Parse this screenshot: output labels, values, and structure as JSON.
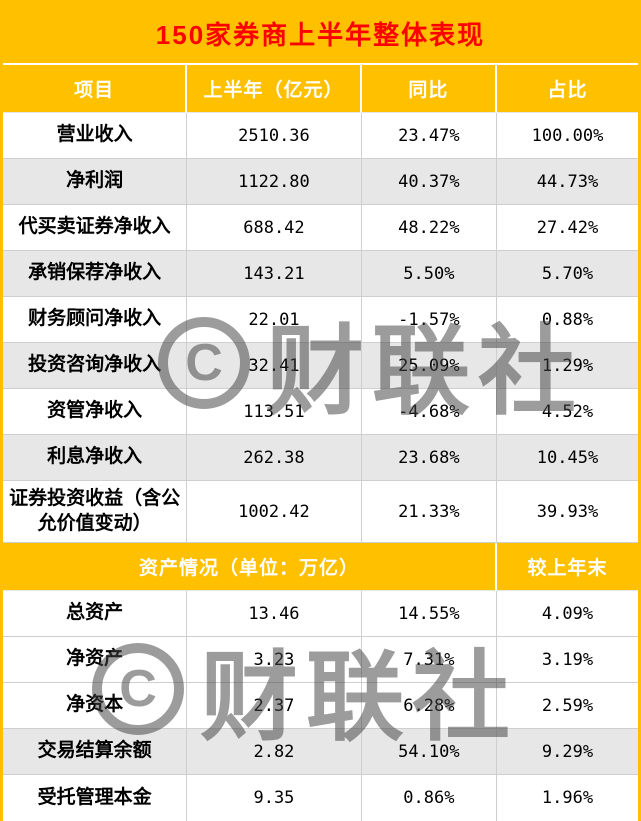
{
  "title": "150家券商上半年整体表现",
  "watermark": {
    "logo_letter": "C",
    "text": "财联社"
  },
  "colors": {
    "header_gold": "#FFC000",
    "title_red": "#FF0000",
    "shaded_row": "#E7E7E7",
    "grid_line": "#CFCFCF"
  },
  "chart_data": {
    "type": "table",
    "title": "150家券商上半年整体表现",
    "sections": [
      {
        "headers": [
          "项目",
          "上半年（亿元）",
          "同比",
          "占比"
        ],
        "rows": [
          [
            "营业收入",
            "2510.36",
            "23.47%",
            "100.00%"
          ],
          [
            "净利润",
            "1122.80",
            "40.37%",
            "44.73%"
          ],
          [
            "代买卖证券净收入",
            "688.42",
            "48.22%",
            "27.42%"
          ],
          [
            "承销保荐净收入",
            "143.21",
            "5.50%",
            "5.70%"
          ],
          [
            "财务顾问净收入",
            "22.01",
            "-1.57%",
            "0.88%"
          ],
          [
            "投资咨询净收入",
            "32.41",
            "25.09%",
            "1.29%"
          ],
          [
            "资管净收入",
            "113.51",
            "-4.68%",
            "4.52%"
          ],
          [
            "利息净收入",
            "262.38",
            "23.68%",
            "10.45%"
          ],
          [
            "证券投资收益（含公允价值变动）",
            "1002.42",
            "21.33%",
            "39.93%"
          ]
        ]
      },
      {
        "merged_header": "资产情况（单位：万亿）",
        "right_header": "较上年末",
        "rows": [
          [
            "总资产",
            "13.46",
            "14.55%",
            "4.09%"
          ],
          [
            "净资产",
            "3.23",
            "7.31%",
            "3.19%"
          ],
          [
            "净资本",
            "2.37",
            "6.28%",
            "2.59%"
          ],
          [
            "交易结算余额",
            "2.82",
            "54.10%",
            "9.29%"
          ],
          [
            "受托管理本金",
            "9.35",
            "0.86%",
            "1.96%"
          ]
        ]
      }
    ]
  }
}
